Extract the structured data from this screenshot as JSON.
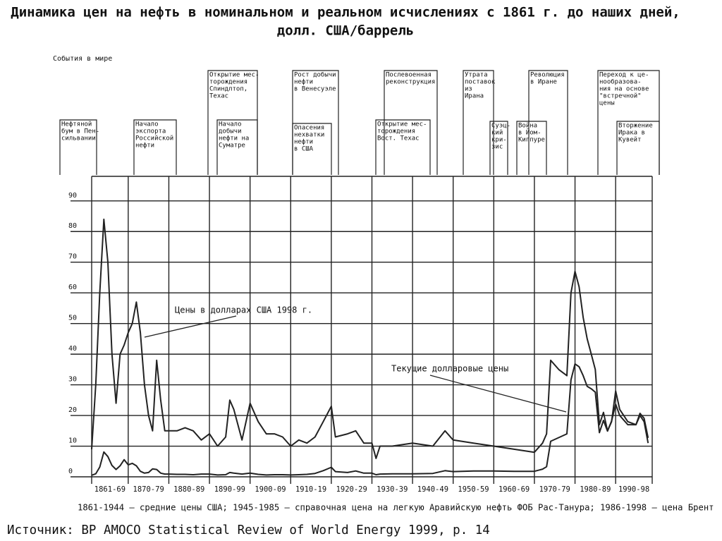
{
  "chart_data": {
    "type": "line",
    "title": "Динамика цен на нефть в номинальном и реальном исчислениях с 1861 г. до наших дней,",
    "subtitle": "долл. США/баррель",
    "events_label": "События в мире",
    "events": [
      {
        "lines": [
          "Открытие мес-",
          "торождения",
          "Спиндлтоп,",
          "Техас"
        ]
      },
      {
        "lines": [
          "Рост добычи",
          "нефти",
          "в Венесуэле"
        ]
      },
      {
        "lines": [
          "Послевоенная",
          "реконструкция"
        ]
      },
      {
        "lines": [
          "Утрата",
          "поставок",
          "из",
          "Ирана"
        ]
      },
      {
        "lines": [
          "Революция",
          "в Иране"
        ]
      },
      {
        "lines": [
          "Переход к це-",
          "нообразова-",
          "ния на основе",
          "\"встречной\"",
          "цены"
        ]
      },
      {
        "lines": [
          "Нефтяной",
          "бум в Пен-",
          "сильвании"
        ]
      },
      {
        "lines": [
          "Начало",
          "экспорта",
          "Российской",
          "нефти"
        ]
      },
      {
        "lines": [
          "Начало",
          "добычи",
          "нефти на",
          "Суматре"
        ]
      },
      {
        "lines": [
          "Опасения",
          "нехватки",
          "нефти",
          "в США"
        ]
      },
      {
        "lines": [
          "Открытие мес-",
          "торождения",
          "Вост. Техас"
        ]
      },
      {
        "lines": [
          "Суэц-",
          "кий",
          "кри-",
          "зис"
        ]
      },
      {
        "lines": [
          "Война",
          "в Йом-",
          "Киппуре"
        ]
      },
      {
        "lines": [
          "Вторжение",
          "Ирака в",
          "Кувейт"
        ]
      }
    ],
    "categories": [
      "1861-69",
      "1870-79",
      "1880-89",
      "1890-99",
      "1900-09",
      "1910-19",
      "1920-29",
      "1930-39",
      "1940-49",
      "1950-59",
      "1960-69",
      "1970-79",
      "1980-89",
      "1990-98"
    ],
    "xlim": [
      1861,
      1999
    ],
    "xticks": [
      1861,
      1870,
      1880,
      1890,
      1900,
      1910,
      1920,
      1930,
      1940,
      1950,
      1960,
      1970,
      1980,
      1990,
      1999
    ],
    "ylim": [
      0,
      98
    ],
    "yticks": [
      0,
      10,
      20,
      30,
      40,
      50,
      60,
      70,
      80,
      90
    ],
    "grid": true,
    "x": [
      1861,
      1862,
      1863,
      1864,
      1865,
      1866,
      1867,
      1868,
      1869,
      1870,
      1871,
      1872,
      1873,
      1874,
      1875,
      1876,
      1877,
      1878,
      1879,
      1880,
      1882,
      1884,
      1886,
      1888,
      1890,
      1892,
      1894,
      1895,
      1896,
      1898,
      1900,
      1902,
      1904,
      1906,
      1908,
      1910,
      1912,
      1914,
      1916,
      1918,
      1920,
      1921,
      1924,
      1926,
      1928,
      1930,
      1931,
      1932,
      1935,
      1940,
      1945,
      1948,
      1950,
      1955,
      1960,
      1965,
      1970,
      1972,
      1973,
      1974,
      1976,
      1978,
      1979,
      1980,
      1981,
      1982,
      1983,
      1984,
      1985,
      1986,
      1987,
      1988,
      1989,
      1990,
      1991,
      1993,
      1995,
      1996,
      1997,
      1998
    ],
    "series": [
      {
        "name": "Цены в долларах США 1998 г.",
        "color": "#222222",
        "values": [
          9,
          30,
          60,
          84,
          70,
          40,
          24,
          40,
          43,
          47,
          50,
          57,
          47,
          30,
          20,
          15,
          38,
          25,
          15,
          15,
          15,
          16,
          15,
          12,
          14,
          10,
          13,
          25,
          22,
          12,
          24,
          18,
          14,
          14,
          13,
          10,
          12,
          11,
          13,
          18,
          23,
          13,
          14,
          15,
          11,
          11,
          6,
          10,
          10,
          11,
          10,
          15,
          12,
          11,
          10,
          9,
          8,
          11,
          14,
          38,
          35,
          33,
          60,
          67,
          62,
          52,
          45,
          40,
          35,
          17,
          21,
          15,
          18,
          28,
          22,
          18,
          17,
          20,
          18,
          11
        ]
      },
      {
        "name": "Текущие долларовые цены",
        "color": "#222222",
        "values": [
          0.5,
          1.0,
          3.2,
          8.1,
          6.6,
          3.7,
          2.4,
          3.6,
          5.6,
          3.9,
          4.4,
          3.6,
          1.8,
          1.2,
          1.4,
          2.6,
          2.4,
          1.2,
          0.9,
          0.9,
          0.8,
          0.8,
          0.7,
          0.9,
          0.9,
          0.6,
          0.7,
          1.4,
          1.2,
          0.9,
          1.2,
          0.8,
          0.6,
          0.7,
          0.7,
          0.6,
          0.7,
          0.8,
          1.1,
          2.0,
          3.1,
          1.7,
          1.4,
          1.9,
          1.2,
          1.2,
          0.7,
          0.9,
          1.0,
          1.0,
          1.1,
          2.0,
          1.7,
          1.9,
          1.9,
          1.8,
          1.8,
          2.5,
          3.3,
          11.6,
          12.8,
          14.0,
          31.6,
          36.8,
          35.9,
          33.0,
          29.5,
          28.7,
          27.6,
          14.4,
          18.4,
          14.9,
          18.2,
          23.7,
          20.0,
          17.0,
          17.0,
          20.7,
          19.1,
          12.7
        ]
      }
    ],
    "footnote": "1861-1944 – средние цены США; 1945-1985 – справочная цена на легкую Аравийскую нефть ФОБ Рас-Танура; 1986-1998 – цена Брент",
    "source": "Источник: BP AMOCO Statistical Review of World Energy 1999,  p. 14"
  }
}
